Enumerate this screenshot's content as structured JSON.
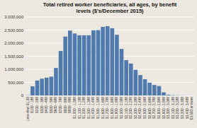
{
  "chart_data": {
    "type": "bar",
    "title": "Total retired worker beneficiaries, all ages, by benefit\nlevels ($'s/December 2015)",
    "categories": [
      "Less than $1,00",
      "$100 - 199",
      "$200 - 299",
      "$300 - 399",
      "$400 - 499",
      "$500 - 599",
      "$600 - 699",
      "$700 - 799",
      "$800 - 899",
      "$900 - 999",
      "$1,000 - 1,099",
      "$1,100 - 1,199",
      "$1,200 - 1,299",
      "$1,300 - 1,399",
      "$1,400 - 1,499",
      "$1,500 - 1,599",
      "$1,600 - 1,699",
      "$1,700 - 1,799",
      "$1,800 - 1,899",
      "$1,900 - 1,999",
      "$2,000 - 2,099",
      "$2,100 - 2,199",
      "$2,200 - 2,299",
      "$2,300 - 2,399",
      "$2,400 - 2,499",
      "$2,500 - 2,599",
      "$2,600 - 2,699",
      "$2,700 - 2,799",
      "$2,800 - 2,899",
      "$2,900 - 2,999",
      "$3,000 - 3,099",
      "$3,100 - 3,199",
      "$3,200 - 3,299",
      "$3,300 - 3,399",
      "$3,400 - 3,499",
      "$3,500 or more"
    ],
    "values": [
      10000,
      350000,
      570000,
      640000,
      680000,
      720000,
      1050000,
      1700000,
      2250000,
      2480000,
      2370000,
      2300000,
      2300000,
      2300000,
      2490000,
      2500000,
      2620000,
      2650000,
      2570000,
      2320000,
      1780000,
      1350000,
      1220000,
      980000,
      780000,
      620000,
      490000,
      400000,
      360000,
      120000,
      30000,
      15000,
      10000,
      5000,
      3000,
      2000
    ],
    "color": "#4e7aad",
    "ylim": [
      0,
      3000000
    ],
    "yticks": [
      0,
      {
        "value": 500000,
        "label": "500,000"
      },
      {
        "value": 1000000,
        "label": "1,000,000"
      },
      {
        "value": 1500000,
        "label": "1,500,000"
      },
      {
        "value": 2000000,
        "label": "2,000,000"
      },
      {
        "value": 2500000,
        "label": "2,500,000"
      },
      {
        "value": 3000000,
        "label": "3,000,000"
      }
    ],
    "grid": true
  }
}
